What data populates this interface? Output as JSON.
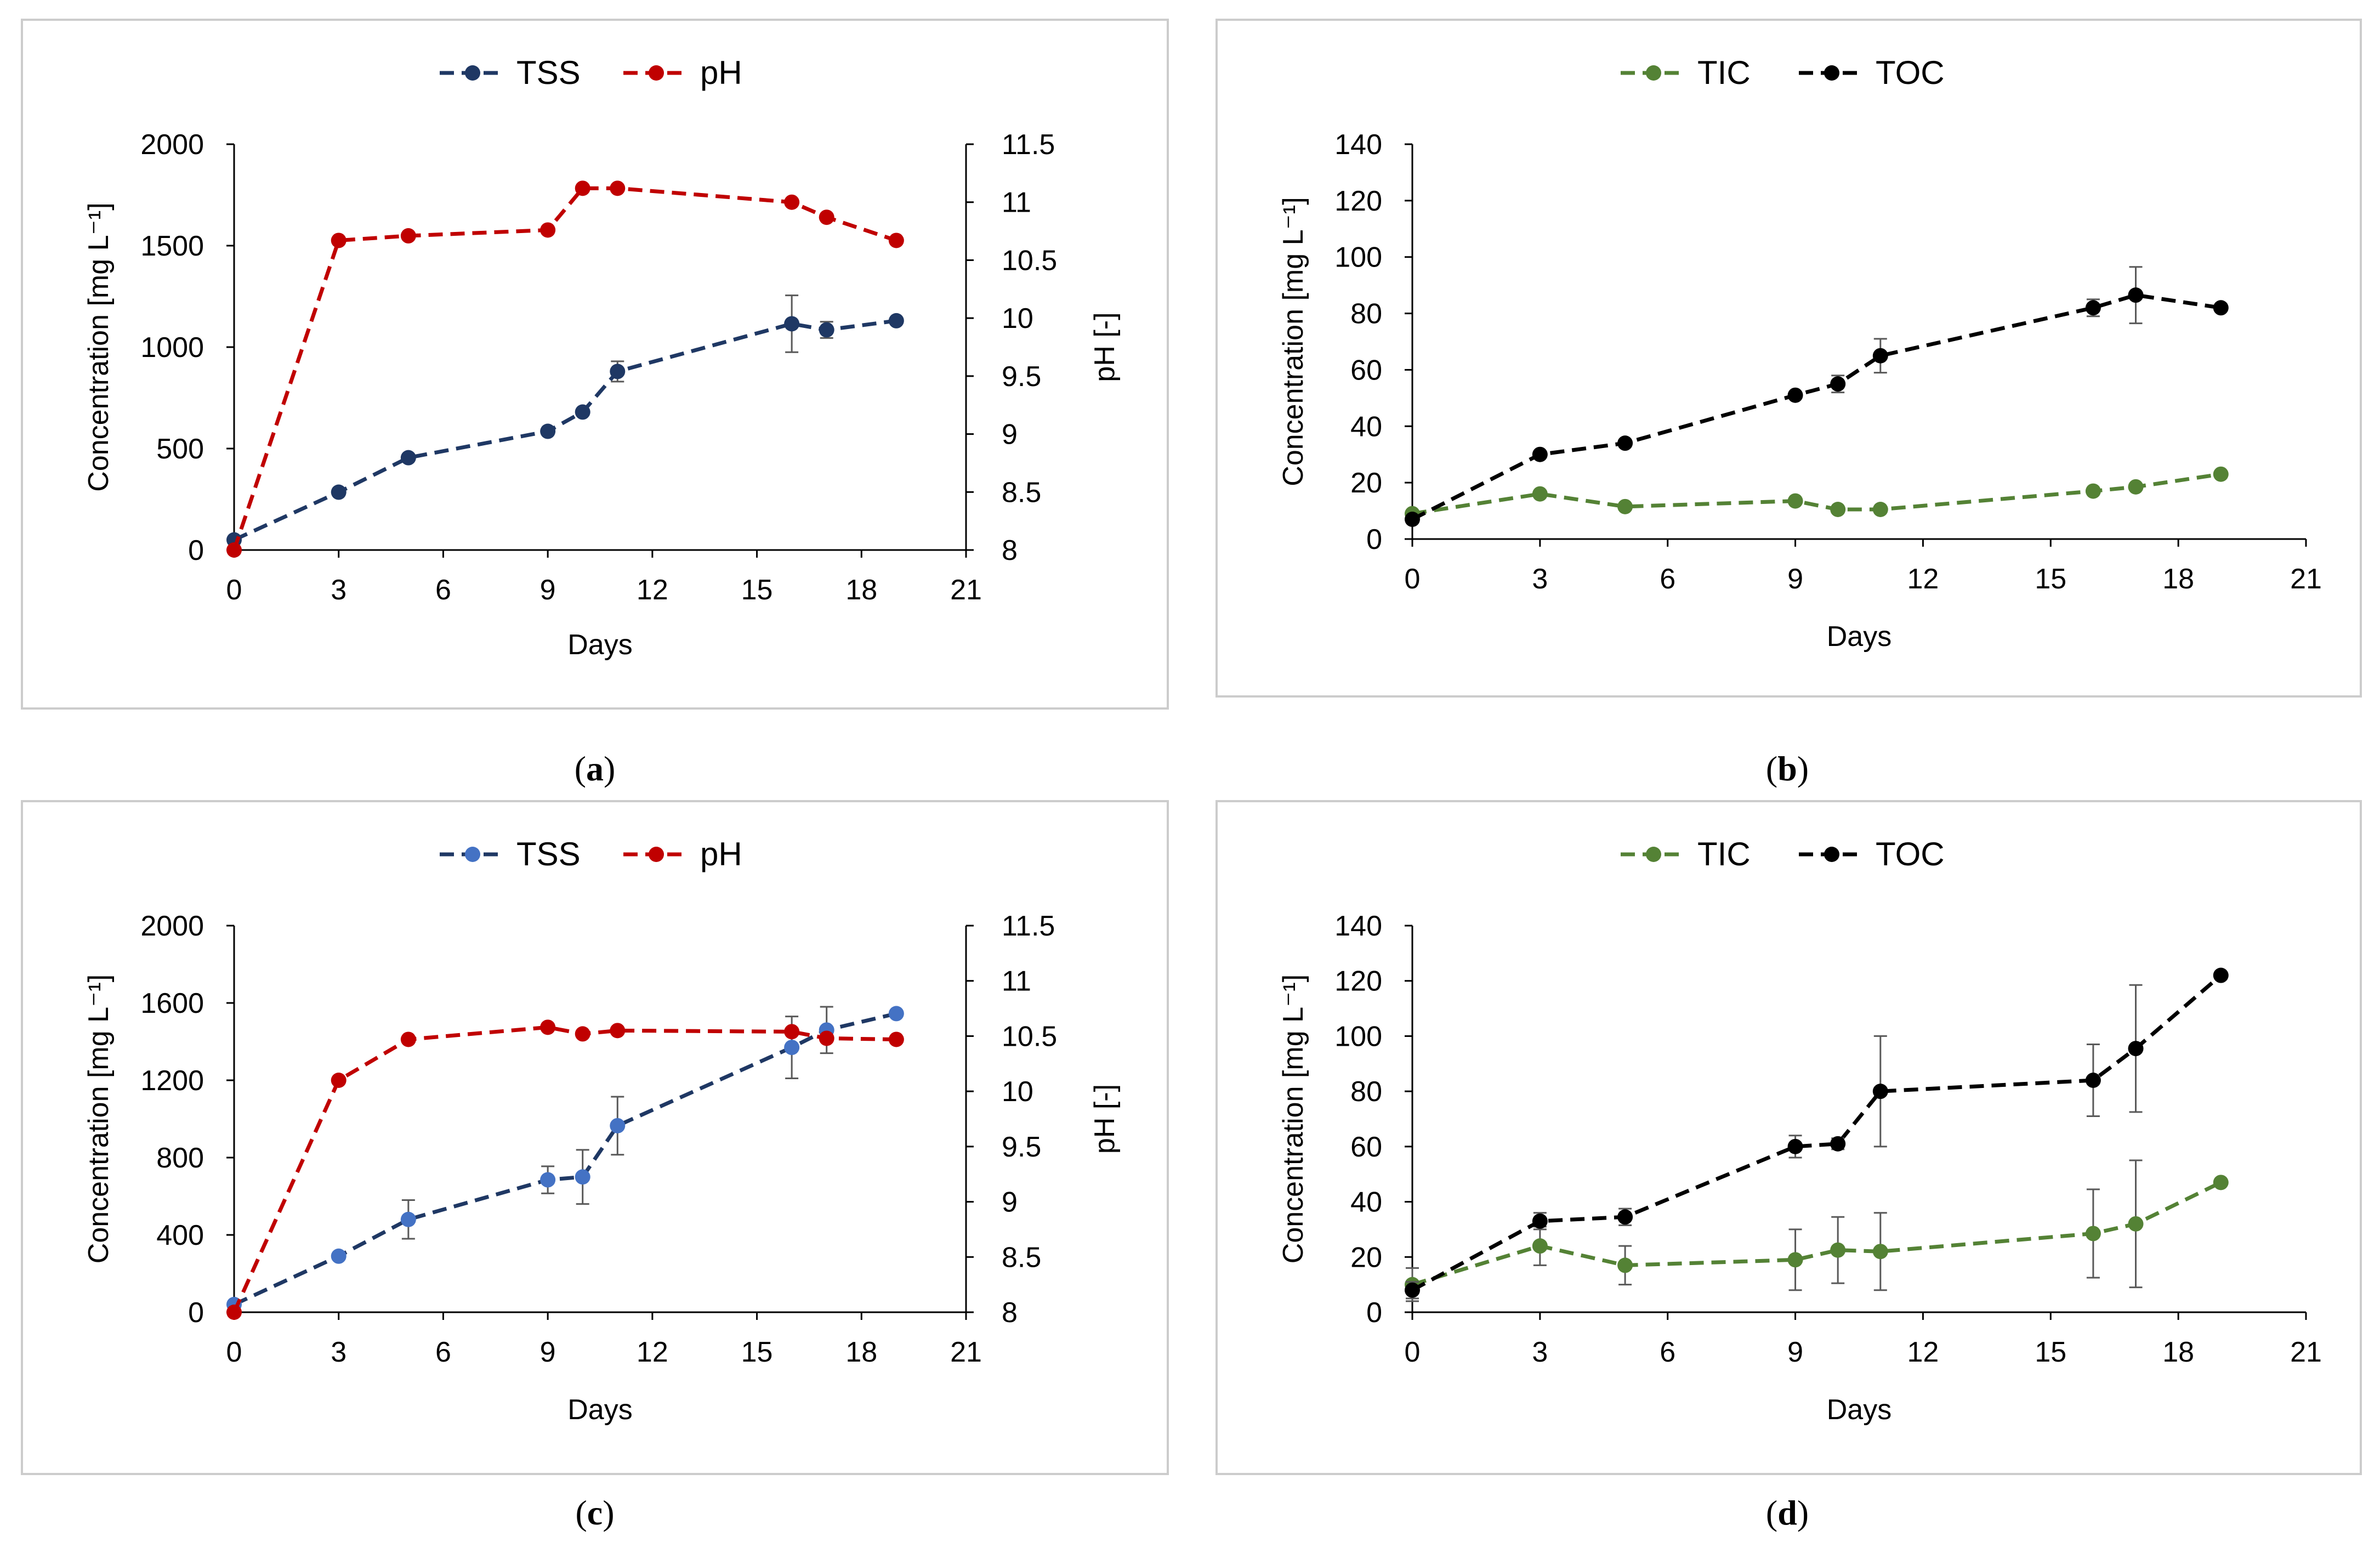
{
  "colors": {
    "tss_a": "#1f3864",
    "tss_c": "#4472c4",
    "tss_line_c": "#1f3864",
    "ph": "#c00000",
    "tic": "#548235",
    "toc": "#000000",
    "axis": "#000000",
    "error": "#595959"
  },
  "captions": [
    "a",
    "b",
    "c",
    "d"
  ],
  "chart_data": [
    {
      "id": "a",
      "type": "line",
      "xlabel": "Days",
      "ylabel": "Concentration  [mg L⁻¹]",
      "y2label": "pH [-]",
      "xlim": [
        0,
        21
      ],
      "xticks": [
        0,
        3,
        6,
        9,
        12,
        15,
        18,
        21
      ],
      "ylim": [
        0,
        2000
      ],
      "yticks": [
        0,
        500,
        1000,
        1500,
        2000
      ],
      "y2lim": [
        8,
        11.5
      ],
      "y2ticks": [
        8,
        8.5,
        9,
        9.5,
        10,
        10.5,
        11,
        11.5
      ],
      "y2tick_labels": [
        "8",
        "8.5",
        "9",
        "9.5",
        "10",
        "10.5",
        "11",
        "11.5"
      ],
      "series": [
        {
          "name": "TSS",
          "axis": "left",
          "color_key": "tss_a",
          "line_color_key": "tss_a",
          "x": [
            0,
            3,
            5,
            9,
            10,
            11,
            16,
            17,
            19
          ],
          "values": [
            50,
            285,
            455,
            585,
            680,
            880,
            1115,
            1085,
            1130
          ],
          "errors": [
            0,
            0,
            0,
            0,
            0,
            50,
            140,
            40,
            0
          ]
        },
        {
          "name": "pH",
          "axis": "right",
          "color_key": "ph",
          "line_color_key": "ph",
          "x": [
            0,
            3,
            5,
            9,
            10,
            11,
            16,
            17,
            19
          ],
          "values": [
            8.0,
            10.67,
            10.71,
            10.76,
            11.12,
            11.12,
            11.0,
            10.87,
            10.67
          ],
          "errors": [
            0,
            0,
            0,
            0,
            0,
            0,
            0,
            0,
            0
          ]
        }
      ]
    },
    {
      "id": "b",
      "type": "line",
      "xlabel": "Days",
      "ylabel": "Concentration  [mg L⁻¹]",
      "xlim": [
        0,
        21
      ],
      "xticks": [
        0,
        3,
        6,
        9,
        12,
        15,
        18,
        21
      ],
      "ylim": [
        0,
        140
      ],
      "yticks": [
        0,
        20,
        40,
        60,
        80,
        100,
        120,
        140
      ],
      "series": [
        {
          "name": "TIC",
          "axis": "left",
          "color_key": "tic",
          "line_color_key": "tic",
          "x": [
            0,
            3,
            5,
            9,
            10,
            11,
            16,
            17,
            19
          ],
          "values": [
            9,
            16,
            11.5,
            13.5,
            10.5,
            10.5,
            17,
            18.5,
            23
          ],
          "errors": [
            0,
            0,
            0,
            0,
            0,
            0,
            0,
            0,
            0
          ]
        },
        {
          "name": "TOC",
          "axis": "left",
          "color_key": "toc",
          "line_color_key": "toc",
          "x": [
            0,
            3,
            5,
            9,
            10,
            11,
            16,
            17,
            19
          ],
          "values": [
            7,
            30,
            34,
            51,
            55,
            65,
            82,
            86.5,
            82
          ],
          "errors": [
            0,
            0,
            0,
            0,
            3,
            6,
            3,
            10,
            0
          ]
        }
      ]
    },
    {
      "id": "c",
      "type": "line",
      "xlabel": "Days",
      "ylabel": "Concentration  [mg L⁻¹]",
      "y2label": "pH [-]",
      "xlim": [
        0,
        21
      ],
      "xticks": [
        0,
        3,
        6,
        9,
        12,
        15,
        18,
        21
      ],
      "ylim": [
        0,
        2000
      ],
      "yticks": [
        0,
        400,
        800,
        1200,
        1600,
        2000
      ],
      "y2lim": [
        8,
        11.5
      ],
      "y2ticks": [
        8,
        8.5,
        9,
        9.5,
        10,
        10.5,
        11,
        11.5
      ],
      "y2tick_labels": [
        "8",
        "8.5",
        "9",
        "9.5",
        "10",
        "10.5",
        "11",
        "11.5"
      ],
      "series": [
        {
          "name": "TSS",
          "axis": "left",
          "color_key": "tss_c",
          "line_color_key": "tss_line_c",
          "x": [
            0,
            3,
            5,
            9,
            10,
            11,
            16,
            17,
            19
          ],
          "values": [
            40,
            290,
            480,
            685,
            700,
            965,
            1370,
            1460,
            1545
          ],
          "errors": [
            0,
            0,
            100,
            70,
            140,
            150,
            160,
            120,
            0
          ]
        },
        {
          "name": "pH",
          "axis": "right",
          "color_key": "ph",
          "line_color_key": "ph",
          "x": [
            0,
            3,
            5,
            9,
            10,
            11,
            16,
            17,
            19
          ],
          "values": [
            8.0,
            10.1,
            10.47,
            10.58,
            10.52,
            10.55,
            10.54,
            10.48,
            10.47
          ],
          "errors": [
            0,
            0,
            0,
            0,
            0,
            0,
            0,
            0,
            0
          ]
        }
      ]
    },
    {
      "id": "d",
      "type": "line",
      "xlabel": "Days",
      "ylabel": "Concentration  [mg L⁻¹]",
      "xlim": [
        0,
        21
      ],
      "xticks": [
        0,
        3,
        6,
        9,
        12,
        15,
        18,
        21
      ],
      "ylim": [
        0,
        140
      ],
      "yticks": [
        0,
        20,
        40,
        60,
        80,
        100,
        120,
        140
      ],
      "series": [
        {
          "name": "TIC",
          "axis": "left",
          "color_key": "tic",
          "line_color_key": "tic",
          "x": [
            0,
            3,
            5,
            9,
            10,
            11,
            16,
            17,
            19
          ],
          "values": [
            10,
            24,
            17,
            19,
            22.5,
            22,
            28.5,
            32,
            47
          ],
          "errors": [
            6,
            7,
            7,
            11,
            12,
            14,
            16,
            23,
            0
          ]
        },
        {
          "name": "TOC",
          "axis": "left",
          "color_key": "toc",
          "line_color_key": "toc",
          "x": [
            0,
            3,
            5,
            9,
            10,
            11,
            16,
            17,
            19
          ],
          "values": [
            8,
            33,
            34.5,
            60,
            61,
            80,
            84,
            95.5,
            122
          ],
          "errors": [
            3,
            3,
            3,
            4,
            2,
            20,
            13,
            23,
            0
          ]
        }
      ]
    }
  ]
}
